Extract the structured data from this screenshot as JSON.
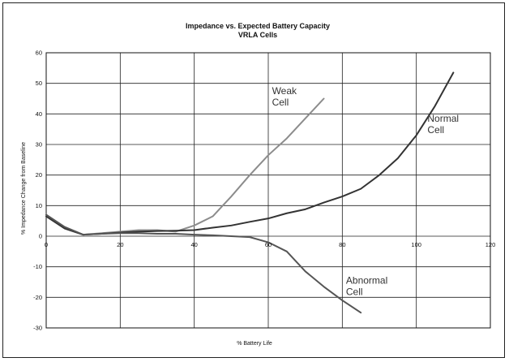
{
  "chart_data": {
    "type": "line",
    "title": "Impedance vs. Expected Battery Capacity",
    "subtitle": "VRLA Cells",
    "xlabel": "% Battery Life",
    "ylabel": "% Impedance Change from Baseline",
    "xlim": [
      0,
      120
    ],
    "ylim": [
      -30,
      60
    ],
    "xticks": [
      0,
      20,
      40,
      60,
      80,
      100,
      120
    ],
    "yticks": [
      -30,
      -20,
      -10,
      0,
      10,
      20,
      30,
      40,
      50,
      60
    ],
    "grid": true,
    "legend": "none",
    "series": [
      {
        "name": "Weak Cell",
        "label_lines": [
          "Weak",
          "Cell"
        ],
        "label_at": [
          61,
          46.5
        ],
        "color": "#8c8c8c",
        "x": [
          0,
          5,
          10,
          15,
          20,
          25,
          30,
          35,
          40,
          45,
          50,
          55,
          60,
          65,
          70,
          75
        ],
        "y": [
          7,
          3,
          0.5,
          1,
          1.5,
          2,
          2,
          1.5,
          3.5,
          6.5,
          13,
          20,
          26.5,
          32,
          38.5,
          45
        ]
      },
      {
        "name": "Normal Cell",
        "label_lines": [
          "Normal",
          "Cell"
        ],
        "label_at": [
          103,
          37.5
        ],
        "color": "#333333",
        "x": [
          0,
          5,
          10,
          15,
          20,
          25,
          30,
          35,
          40,
          45,
          50,
          55,
          60,
          65,
          70,
          75,
          80,
          85,
          90,
          95,
          100,
          105,
          110
        ],
        "y": [
          6.5,
          2.5,
          0.5,
          0.8,
          1.2,
          1.5,
          1.7,
          1.8,
          2,
          2.8,
          3.5,
          4.7,
          5.8,
          7.5,
          8.8,
          11,
          13,
          15.5,
          20,
          25.5,
          33,
          42.5,
          53.5
        ]
      },
      {
        "name": "Abnormal Cell",
        "label_lines": [
          "Abnormal",
          "Cell"
        ],
        "label_at": [
          81,
          -15.5
        ],
        "color": "#555555",
        "x": [
          0,
          5,
          10,
          15,
          20,
          25,
          30,
          35,
          40,
          45,
          50,
          55,
          60,
          65,
          70,
          75,
          80,
          85
        ],
        "y": [
          7,
          3,
          0.5,
          0.8,
          1,
          1,
          0.8,
          0.8,
          0.5,
          0.3,
          0,
          -0.3,
          -2,
          -5,
          -11.5,
          -16.5,
          -21,
          -25
        ]
      }
    ]
  }
}
